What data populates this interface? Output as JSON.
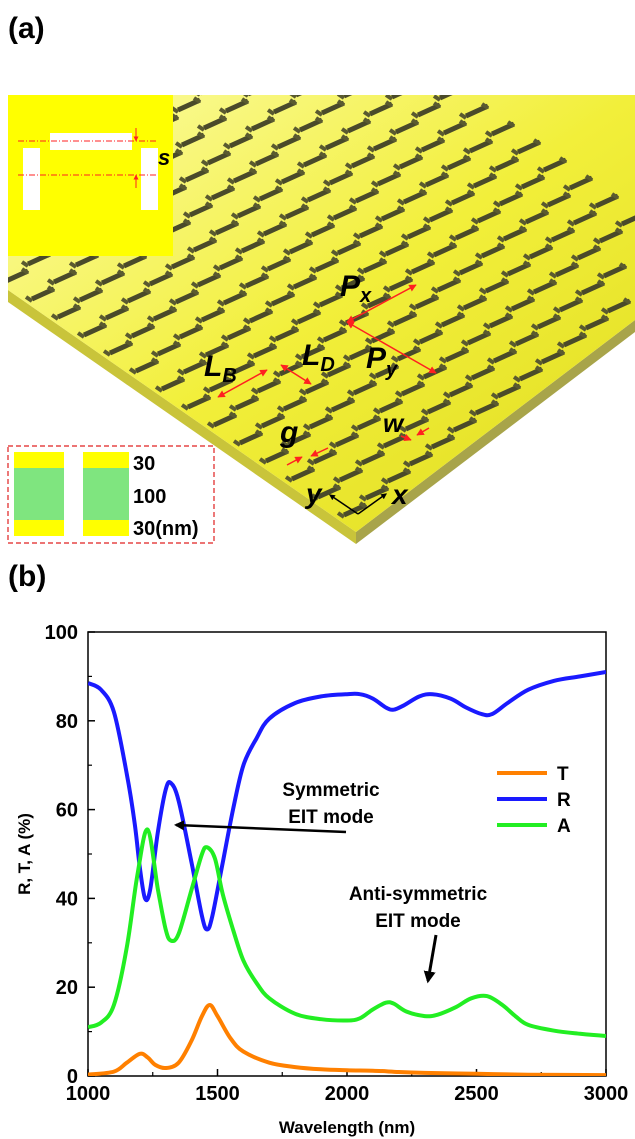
{
  "panel_a": {
    "label": "(a)",
    "labels": {
      "s": "s",
      "px_main": "P",
      "px_sub": "x",
      "py_main": "P",
      "py_sub": "y",
      "lb_main": "L",
      "lb_sub": "B",
      "ld_main": "L",
      "ld_sub": "D",
      "g": "g",
      "w": "w",
      "axis_y": "y",
      "axis_x": "x"
    },
    "cross_section": {
      "top": "30",
      "middle": "100",
      "bottom": "30(nm)"
    },
    "colors": {
      "metal": "#ffff00",
      "dielectric": "#7fe57f",
      "dimension": "#ff2020"
    }
  },
  "panel_b": {
    "label": "(b)",
    "annotations": {
      "symmetric_line1": "Symmetric",
      "symmetric_line2": "EIT mode",
      "anti_line1": "Anti-symmetric",
      "anti_line2": "EIT mode"
    }
  },
  "chart_data": {
    "type": "line",
    "title": "",
    "xlabel": "Wavelength (nm)",
    "ylabel": "R, T, A (%)",
    "xlim": [
      1000,
      3000
    ],
    "ylim": [
      0,
      100
    ],
    "xticks": [
      1000,
      1500,
      2000,
      2500,
      3000
    ],
    "yticks": [
      0,
      20,
      40,
      60,
      80,
      100
    ],
    "grid": false,
    "legend_position": "right-middle",
    "series": [
      {
        "name": "T",
        "color": "#ff8000",
        "points": [
          [
            1000,
            0.3
          ],
          [
            1100,
            1
          ],
          [
            1150,
            3
          ],
          [
            1200,
            5
          ],
          [
            1230,
            4.2
          ],
          [
            1260,
            2.5
          ],
          [
            1300,
            1.8
          ],
          [
            1350,
            3
          ],
          [
            1400,
            8
          ],
          [
            1440,
            13.5
          ],
          [
            1470,
            16
          ],
          [
            1500,
            13.5
          ],
          [
            1550,
            8.5
          ],
          [
            1600,
            5.5
          ],
          [
            1700,
            3
          ],
          [
            1800,
            2
          ],
          [
            1900,
            1.5
          ],
          [
            2000,
            1.3
          ],
          [
            2100,
            1.2
          ],
          [
            2200,
            0.9
          ],
          [
            2300,
            0.7
          ],
          [
            2500,
            0.5
          ],
          [
            2700,
            0.3
          ],
          [
            3000,
            0.2
          ]
        ]
      },
      {
        "name": "R",
        "color": "#1a1aff",
        "points": [
          [
            1000,
            88.5
          ],
          [
            1050,
            87
          ],
          [
            1100,
            82
          ],
          [
            1150,
            68
          ],
          [
            1180,
            57
          ],
          [
            1200,
            47
          ],
          [
            1220,
            40
          ],
          [
            1240,
            42
          ],
          [
            1270,
            55
          ],
          [
            1300,
            64.5
          ],
          [
            1320,
            66
          ],
          [
            1350,
            62
          ],
          [
            1400,
            48
          ],
          [
            1440,
            36
          ],
          [
            1460,
            33
          ],
          [
            1480,
            36
          ],
          [
            1520,
            48
          ],
          [
            1560,
            60
          ],
          [
            1600,
            70
          ],
          [
            1650,
            76
          ],
          [
            1700,
            80.5
          ],
          [
            1800,
            84
          ],
          [
            1900,
            85.5
          ],
          [
            2000,
            86
          ],
          [
            2050,
            86
          ],
          [
            2100,
            85
          ],
          [
            2150,
            83
          ],
          [
            2180,
            82.5
          ],
          [
            2220,
            83.5
          ],
          [
            2280,
            85.5
          ],
          [
            2330,
            86
          ],
          [
            2400,
            85
          ],
          [
            2460,
            83
          ],
          [
            2520,
            81.5
          ],
          [
            2560,
            81.5
          ],
          [
            2620,
            84
          ],
          [
            2700,
            87
          ],
          [
            2800,
            89
          ],
          [
            2900,
            90
          ],
          [
            3000,
            91
          ]
        ]
      },
      {
        "name": "A",
        "color": "#22ee22",
        "points": [
          [
            1000,
            11
          ],
          [
            1050,
            12
          ],
          [
            1100,
            16
          ],
          [
            1150,
            29
          ],
          [
            1190,
            45
          ],
          [
            1230,
            55.5
          ],
          [
            1270,
            42
          ],
          [
            1300,
            33
          ],
          [
            1320,
            30.5
          ],
          [
            1350,
            32
          ],
          [
            1400,
            42
          ],
          [
            1440,
            50
          ],
          [
            1460,
            51.5
          ],
          [
            1490,
            49
          ],
          [
            1520,
            41
          ],
          [
            1560,
            33
          ],
          [
            1600,
            26
          ],
          [
            1650,
            21
          ],
          [
            1700,
            17.5
          ],
          [
            1800,
            14
          ],
          [
            1900,
            12.8
          ],
          [
            2000,
            12.5
          ],
          [
            2050,
            13
          ],
          [
            2100,
            15
          ],
          [
            2150,
            16.5
          ],
          [
            2180,
            16.3
          ],
          [
            2230,
            14.5
          ],
          [
            2300,
            13.5
          ],
          [
            2350,
            13.8
          ],
          [
            2420,
            15.5
          ],
          [
            2480,
            17.5
          ],
          [
            2540,
            18
          ],
          [
            2600,
            16
          ],
          [
            2650,
            13.5
          ],
          [
            2700,
            11.5
          ],
          [
            2800,
            10.2
          ],
          [
            2900,
            9.5
          ],
          [
            3000,
            9
          ]
        ]
      }
    ]
  }
}
